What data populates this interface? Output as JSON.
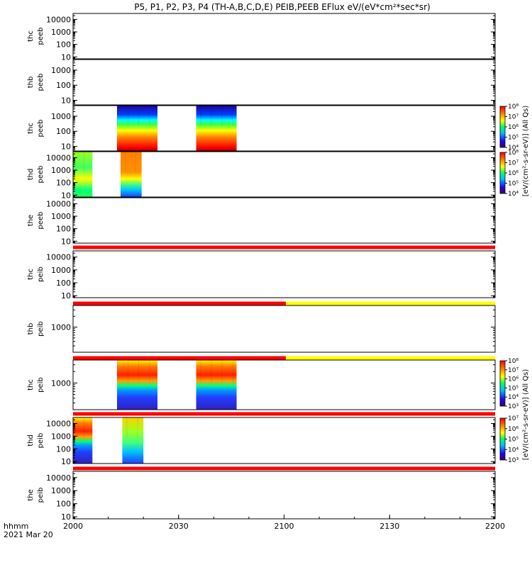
{
  "title": "P5, P1, P2, P3, P4 (TH-A,B,C,D,E) PEIB,PEEB EFlux eV/(eV*cm²*sec*sr)",
  "bottom_label": {
    "line1": "hhmm",
    "line2": "2021 Mar 20"
  },
  "x_ticks": [
    "2000",
    "2030",
    "2100",
    "2130",
    "2200"
  ],
  "x_tick_minutes": [
    0,
    30,
    60,
    90,
    120
  ],
  "colors": {
    "bar_red": "#ff0000",
    "bar_yellow": "#ffff00",
    "bar_black": "#000000"
  },
  "colorbar_label_1": "[eV/(cm²-s-sr-eV)] (All Qs)",
  "colorbar_label_2": "[eV/(cm²-s-sr-eV)] (All Qs)",
  "chart_data": {
    "type": "heatmap",
    "x_unit": "minutes after 20:00 UT",
    "x_range": [
      0,
      120
    ],
    "y_scale": "log",
    "panels": [
      {
        "id": "thc-peeb-top",
        "label1": "thc",
        "label2": "peeb",
        "ylim": [
          7,
          30000
        ],
        "ytick_labels": [
          "10",
          "100",
          "1000",
          "10000"
        ],
        "yticks": [
          10,
          100,
          1000,
          10000
        ],
        "blocks": []
      },
      {
        "id": "thb-peeb",
        "label1": "thb",
        "label2": "peeb",
        "ylim": [
          5,
          5000
        ],
        "ytick_labels": [
          "10",
          "100",
          "1000"
        ],
        "yticks": [
          10,
          100,
          1000
        ],
        "blocks": []
      },
      {
        "id": "thc-peeb",
        "label1": "thc",
        "label2": "peeb",
        "ylim": [
          5,
          5000
        ],
        "ytick_labels": [
          "10",
          "100",
          "1000"
        ],
        "yticks": [
          10,
          100,
          1000
        ],
        "blocks": [
          {
            "x0": 12.5,
            "x1": 24,
            "style": "low-hot"
          },
          {
            "x0": 35,
            "x1": 46.5,
            "style": "low-hot"
          }
        ]
      },
      {
        "id": "thd-peeb",
        "label1": "thd",
        "label2": "peeb",
        "ylim": [
          7,
          30000
        ],
        "ytick_labels": [
          "10",
          "100",
          "1000",
          "10000"
        ],
        "yticks": [
          10,
          100,
          1000,
          10000
        ],
        "blocks": [
          {
            "x0": 0,
            "x1": 5.5,
            "style": "mid-green"
          },
          {
            "x0": 13.5,
            "x1": 19.5,
            "style": "orange-cool-low"
          }
        ]
      },
      {
        "id": "the-peeb",
        "label1": "the",
        "label2": "peeb",
        "ylim": [
          7,
          30000
        ],
        "ytick_labels": [
          "10",
          "100",
          "1000",
          "10000"
        ],
        "yticks": [
          10,
          100,
          1000,
          10000
        ],
        "blocks": []
      },
      {
        "id": "thc-peib-top",
        "label1": "thc",
        "label2": "peib",
        "ylim": [
          7,
          30000
        ],
        "ytick_labels": [
          "10",
          "100",
          "1000",
          "10000"
        ],
        "yticks": [
          10,
          100,
          1000,
          10000
        ],
        "blocks": []
      },
      {
        "id": "thb-peib",
        "label1": "thb",
        "label2": "peib",
        "ylim": [
          200,
          4000
        ],
        "ytick_labels": [
          "1000"
        ],
        "yticks": [
          1000
        ],
        "blocks": []
      },
      {
        "id": "thc-peib",
        "label1": "thc",
        "label2": "peib",
        "ylim": [
          200,
          4000
        ],
        "ytick_labels": [
          "1000"
        ],
        "yticks": [
          1000
        ],
        "blocks": [
          {
            "x0": 12.5,
            "x1": 24,
            "style": "high-hot"
          },
          {
            "x0": 35,
            "x1": 46.5,
            "style": "high-hot"
          }
        ]
      },
      {
        "id": "thd-peib",
        "label1": "thd",
        "label2": "peib",
        "ylim": [
          7,
          30000
        ],
        "ytick_labels": [
          "10",
          "100",
          "1000",
          "10000"
        ],
        "yticks": [
          10,
          100,
          1000,
          10000
        ],
        "blocks": [
          {
            "x0": 0,
            "x1": 5.5,
            "style": "high-hot"
          },
          {
            "x0": 14,
            "x1": 20,
            "style": "green-cool"
          }
        ]
      },
      {
        "id": "the-peib",
        "label1": "the",
        "label2": "peib",
        "ylim": [
          7,
          30000
        ],
        "ytick_labels": [
          "10",
          "100",
          "1000",
          "10000"
        ],
        "yticks": [
          10,
          100,
          1000,
          10000
        ],
        "blocks": []
      }
    ],
    "quality_bars": [
      {
        "after_panel": "the-peeb",
        "segments": [
          {
            "x0": 0,
            "x1": 120,
            "color": "red"
          }
        ]
      },
      {
        "after_panel": "thc-peib-top",
        "segments": [
          {
            "x0": 0,
            "x1": 60.5,
            "color": "red"
          },
          {
            "x0": 60.5,
            "x1": 120,
            "color": "yellow"
          }
        ]
      },
      {
        "after_panel": "thb-peib",
        "segments": [
          {
            "x0": 0,
            "x1": 60.5,
            "color": "red"
          },
          {
            "x0": 60.5,
            "x1": 120,
            "color": "yellow"
          }
        ]
      },
      {
        "after_panel": "thc-peib",
        "segments": [
          {
            "x0": 0,
            "x1": 120,
            "color": "red"
          }
        ]
      },
      {
        "after_panel": "thd-peib",
        "segments": [
          {
            "x0": 0,
            "x1": 120,
            "color": "red"
          }
        ]
      }
    ],
    "colorbars": [
      {
        "id": "cb-peeb-thc",
        "beside_panel": "thc-peeb",
        "tick_labels": [
          "10⁴",
          "10⁵",
          "10⁶",
          "10⁷",
          "10⁸"
        ]
      },
      {
        "id": "cb-peeb-thd",
        "beside_panel": "thd-peeb",
        "tick_labels": [
          "10⁴",
          "10⁵",
          "10⁶",
          "10⁷",
          "10⁸"
        ]
      },
      {
        "id": "cb-peib-thc",
        "beside_panel": "thc-peib",
        "tick_labels": [
          "10³",
          "10⁴",
          "10⁵",
          "10⁶",
          "10⁷",
          "10⁸"
        ]
      },
      {
        "id": "cb-peib-thd",
        "beside_panel": "thd-peib",
        "tick_labels": [
          "10³",
          "10⁴",
          "10⁵",
          "10⁶",
          "10⁷"
        ]
      }
    ]
  }
}
